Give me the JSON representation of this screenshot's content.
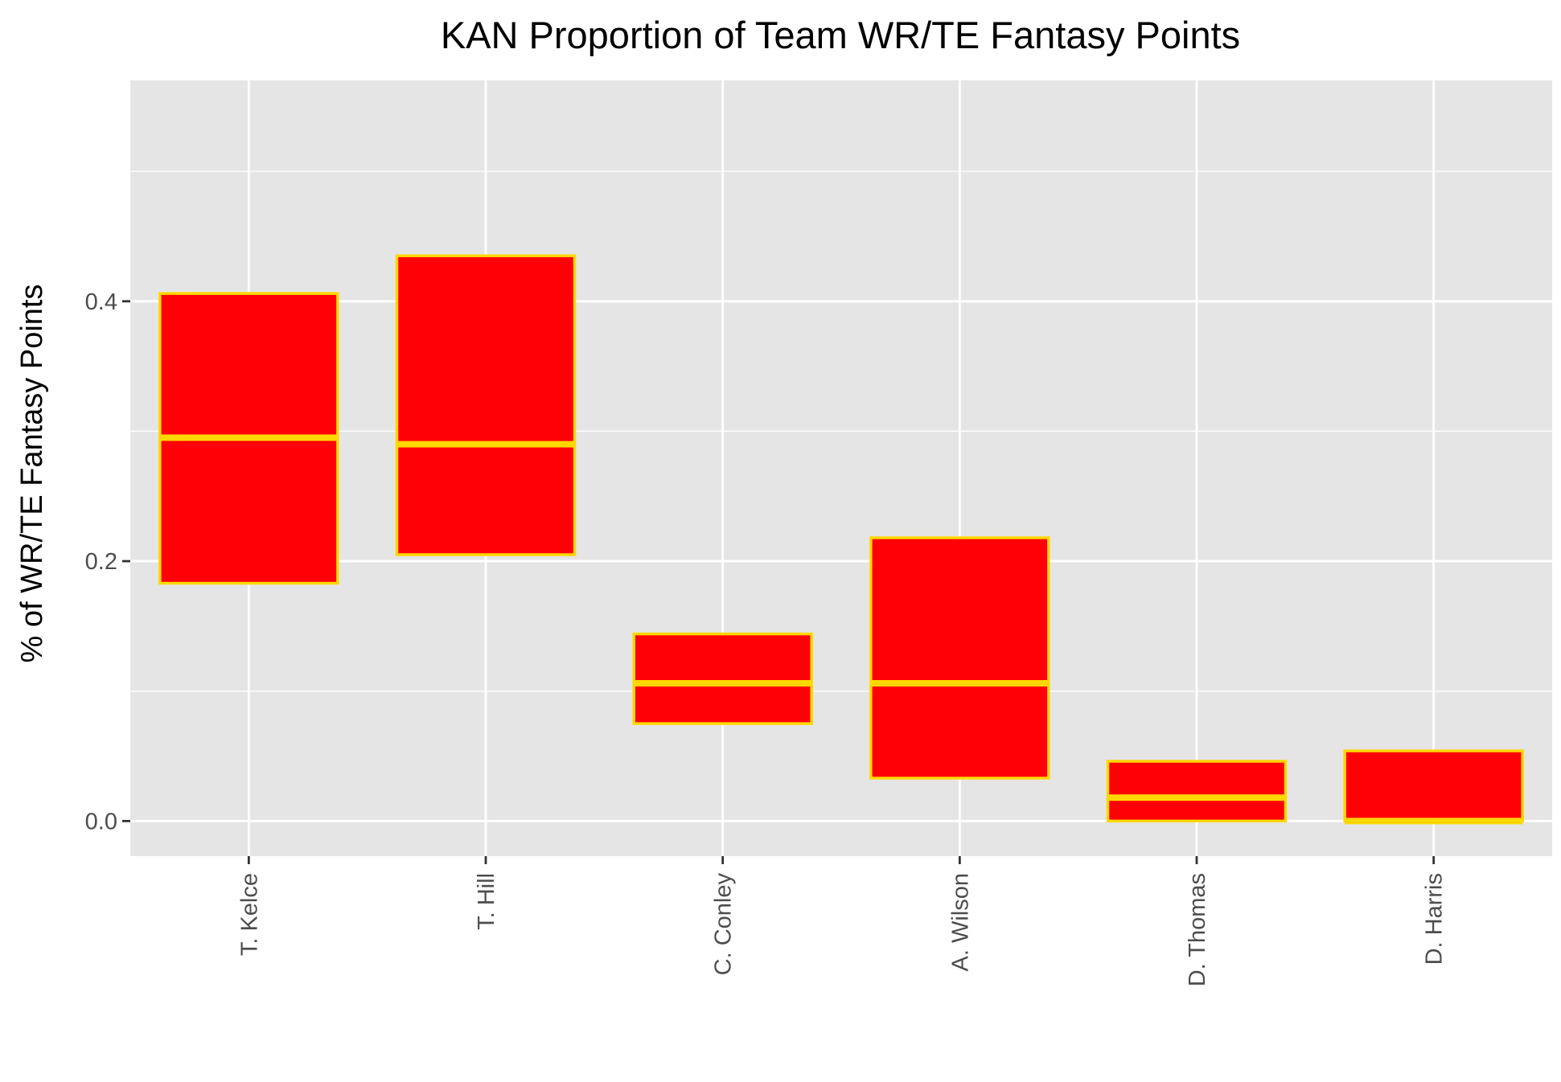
{
  "chart_data": {
    "type": "box",
    "title": "KAN Proportion of Team WR/TE Fantasy Points",
    "xlabel": "",
    "ylabel": "% of WR/TE Fantasy Points",
    "ylim": [
      -0.027,
      0.57
    ],
    "y_ticks": [
      {
        "value": 0.0,
        "label": "0.0"
      },
      {
        "value": 0.2,
        "label": "0.2"
      },
      {
        "value": 0.4,
        "label": "0.4"
      }
    ],
    "y_minor_grid": [
      0.1,
      0.3,
      0.5
    ],
    "grid": true,
    "categories": [
      "T. Kelce",
      "T. Hill",
      "C. Conley",
      "A. Wilson",
      "D. Thomas",
      "D. Harris"
    ],
    "boxes": [
      {
        "category": "T. Kelce",
        "q1": 0.183,
        "median": 0.295,
        "q3": 0.406
      },
      {
        "category": "T. Hill",
        "q1": 0.205,
        "median": 0.29,
        "q3": 0.435
      },
      {
        "category": "C. Conley",
        "q1": 0.075,
        "median": 0.106,
        "q3": 0.144
      },
      {
        "category": "A. Wilson",
        "q1": 0.033,
        "median": 0.106,
        "q3": 0.218
      },
      {
        "category": "D. Thomas",
        "q1": 0.0,
        "median": 0.018,
        "q3": 0.046
      },
      {
        "category": "D. Harris",
        "q1": 0.0,
        "median": 0.0,
        "q3": 0.054
      }
    ],
    "colors": {
      "box_fill": "#ff0006",
      "box_outline": "#ffd700",
      "panel_background": "#e5e5e5",
      "grid": "#ffffff"
    }
  }
}
